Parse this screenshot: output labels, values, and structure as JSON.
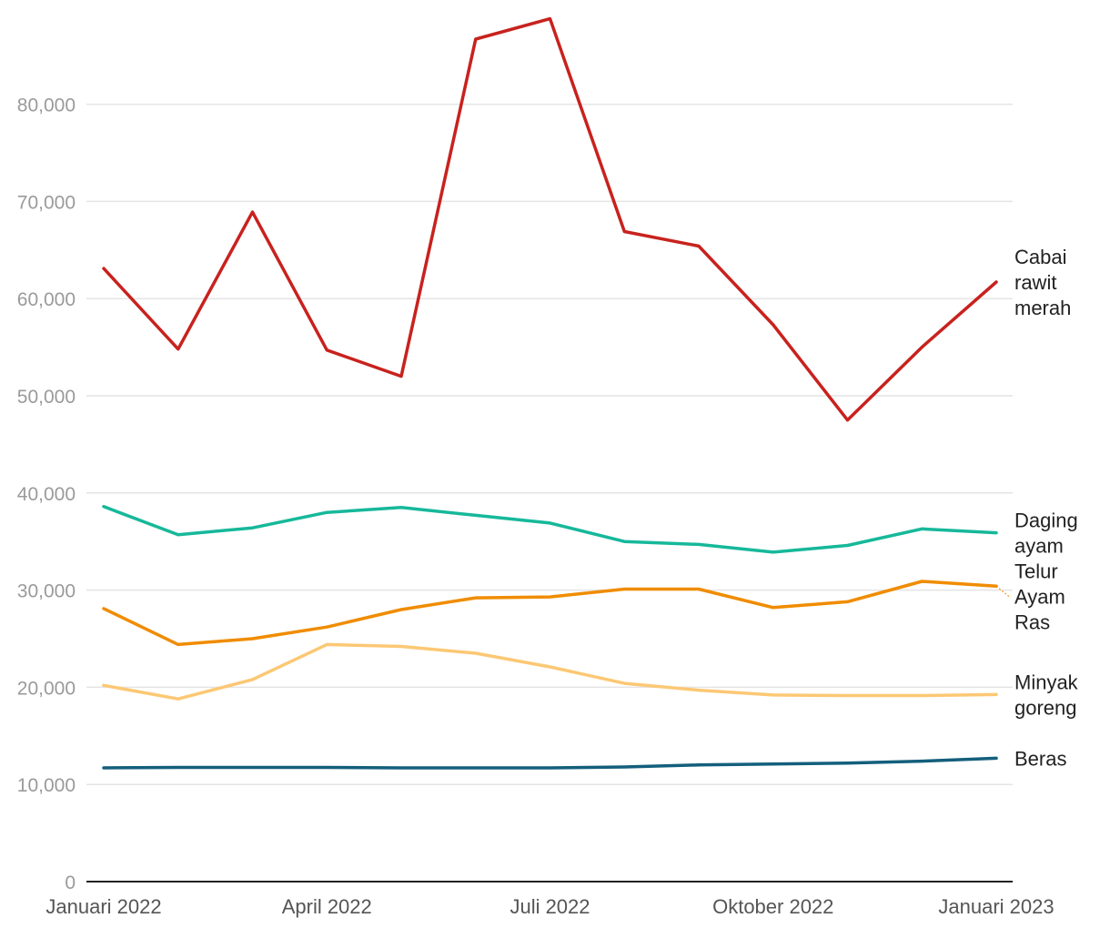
{
  "chart_data": {
    "type": "line",
    "title": "",
    "xlabel": "",
    "ylabel": "",
    "ylim": [
      0,
      90000
    ],
    "yticks": [
      0,
      10000,
      20000,
      30000,
      40000,
      50000,
      60000,
      70000,
      80000
    ],
    "ytick_labels": [
      "0",
      "10,000",
      "20,000",
      "30,000",
      "40,000",
      "50,000",
      "60,000",
      "70,000",
      "80,000"
    ],
    "x": [
      "2022-01",
      "2022-02",
      "2022-03",
      "2022-04",
      "2022-05",
      "2022-06",
      "2022-07",
      "2022-08",
      "2022-09",
      "2022-10",
      "2022-11",
      "2022-12",
      "2023-01"
    ],
    "xticks": [
      {
        "x": "2022-01",
        "label": "Januari 2022"
      },
      {
        "x": "2022-04",
        "label": "April 2022"
      },
      {
        "x": "2022-07",
        "label": "Juli 2022"
      },
      {
        "x": "2022-10",
        "label": "Oktober 2022"
      },
      {
        "x": "2023-01",
        "label": "Januari 2023"
      }
    ],
    "grid": true,
    "legend": "direct labels at right",
    "series": [
      {
        "name": "Cabai rawit merah",
        "label_lines": [
          "Cabai",
          "rawit",
          "merah"
        ],
        "color": "#c8221e",
        "values": [
          63100,
          54800,
          68900,
          54700,
          52000,
          86700,
          88800,
          66900,
          65400,
          57300,
          47500,
          55000,
          61700
        ]
      },
      {
        "name": "Daging ayam",
        "label_lines": [
          "Daging",
          "ayam"
        ],
        "color": "#16b89a",
        "values": [
          38600,
          35700,
          36400,
          38000,
          38500,
          37700,
          36900,
          35000,
          34700,
          33900,
          34600,
          36300,
          35900
        ]
      },
      {
        "name": "Telur Ayam Ras",
        "label_lines": [
          "Telur",
          "Ayam",
          "Ras"
        ],
        "color": "#f08c00",
        "values": [
          28100,
          24400,
          25000,
          26200,
          28000,
          29200,
          29300,
          30100,
          30100,
          28200,
          28800,
          30900,
          30400
        ]
      },
      {
        "name": "Minyak goreng",
        "label_lines": [
          "Minyak",
          "goreng"
        ],
        "color": "#fcc874",
        "values": [
          20200,
          18800,
          20800,
          24400,
          24200,
          23500,
          22100,
          20400,
          19700,
          19200,
          19150,
          19150,
          19250
        ]
      },
      {
        "name": "Beras",
        "label_lines": [
          "Beras"
        ],
        "color": "#135f7c",
        "values": [
          11700,
          11750,
          11750,
          11750,
          11700,
          11700,
          11700,
          11800,
          12000,
          12100,
          12200,
          12400,
          12700
        ]
      }
    ]
  }
}
